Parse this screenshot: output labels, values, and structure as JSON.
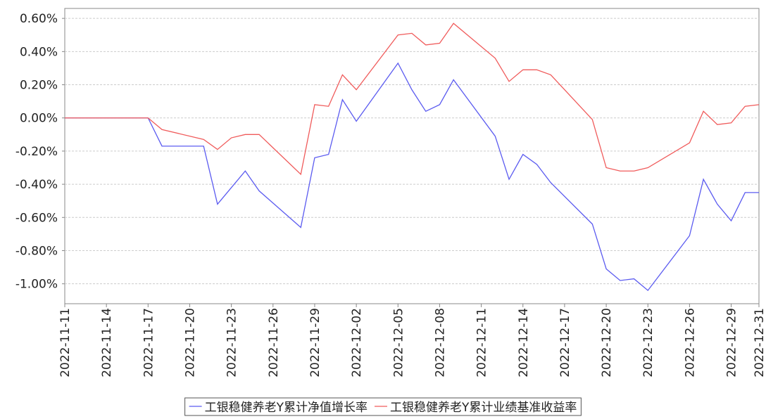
{
  "chart_data": {
    "type": "line",
    "x": [
      "2022-11-11",
      "2022-11-17",
      "2022-11-18",
      "2022-11-21",
      "2022-11-22",
      "2022-11-23",
      "2022-11-24",
      "2022-11-25",
      "2022-11-28",
      "2022-11-29",
      "2022-11-30",
      "2022-12-01",
      "2022-12-02",
      "2022-12-05",
      "2022-12-06",
      "2022-12-07",
      "2022-12-08",
      "2022-12-09",
      "2022-12-12",
      "2022-12-13",
      "2022-12-14",
      "2022-12-15",
      "2022-12-16",
      "2022-12-19",
      "2022-12-20",
      "2022-12-21",
      "2022-12-22",
      "2022-12-23",
      "2022-12-26",
      "2022-12-27",
      "2022-12-28",
      "2022-12-29",
      "2022-12-30",
      "2022-12-31"
    ],
    "series": [
      {
        "name": "工银稳健养老Y累计净值增长率",
        "color": "#5b5bf0",
        "values": [
          0,
          0,
          -0.17,
          -0.17,
          -0.52,
          -0.42,
          -0.32,
          -0.44,
          -0.66,
          -0.24,
          -0.22,
          0.11,
          -0.02,
          0.33,
          0.17,
          0.04,
          0.08,
          0.23,
          -0.11,
          -0.37,
          -0.22,
          -0.28,
          -0.39,
          -0.64,
          -0.91,
          -0.98,
          -0.97,
          -1.04,
          -0.71,
          -0.37,
          -0.52,
          -0.62,
          -0.45,
          -0.45
        ]
      },
      {
        "name": "工银稳健养老Y累计业绩基准收益率",
        "color": "#f05b5b",
        "values": [
          0,
          0,
          -0.07,
          -0.13,
          -0.19,
          -0.12,
          -0.1,
          -0.1,
          -0.34,
          0.08,
          0.07,
          0.26,
          0.17,
          0.5,
          0.51,
          0.44,
          0.45,
          0.57,
          0.36,
          0.22,
          0.29,
          0.29,
          0.26,
          -0.01,
          -0.3,
          -0.32,
          -0.32,
          -0.3,
          -0.15,
          0.04,
          -0.04,
          -0.03,
          0.07,
          0.08
        ]
      }
    ],
    "xlim": [
      "2022-11-11",
      "2022-12-31"
    ],
    "xticks": [
      "2022-11-11",
      "2022-11-14",
      "2022-11-17",
      "2022-11-20",
      "2022-11-23",
      "2022-11-26",
      "2022-11-29",
      "2022-12-02",
      "2022-12-05",
      "2022-12-08",
      "2022-12-11",
      "2022-12-14",
      "2022-12-17",
      "2022-12-20",
      "2022-12-23",
      "2022-12-26",
      "2022-12-29",
      "2022-12-31"
    ],
    "ylim": [
      -1.12,
      0.66
    ],
    "yticks": [
      {
        "value": 0.6,
        "label": "0.60%"
      },
      {
        "value": 0.4,
        "label": "0.40%"
      },
      {
        "value": 0.2,
        "label": "0.20%"
      },
      {
        "value": 0,
        "label": "0.00%"
      },
      {
        "value": -0.2,
        "label": "-0.20%"
      },
      {
        "value": -0.4,
        "label": "-0.40%"
      },
      {
        "value": -0.6,
        "label": "-0.60%"
      },
      {
        "value": -0.8,
        "label": "-0.80%"
      },
      {
        "value": -1,
        "label": "-1.00%"
      }
    ],
    "grid": true,
    "legend": "bottom"
  }
}
